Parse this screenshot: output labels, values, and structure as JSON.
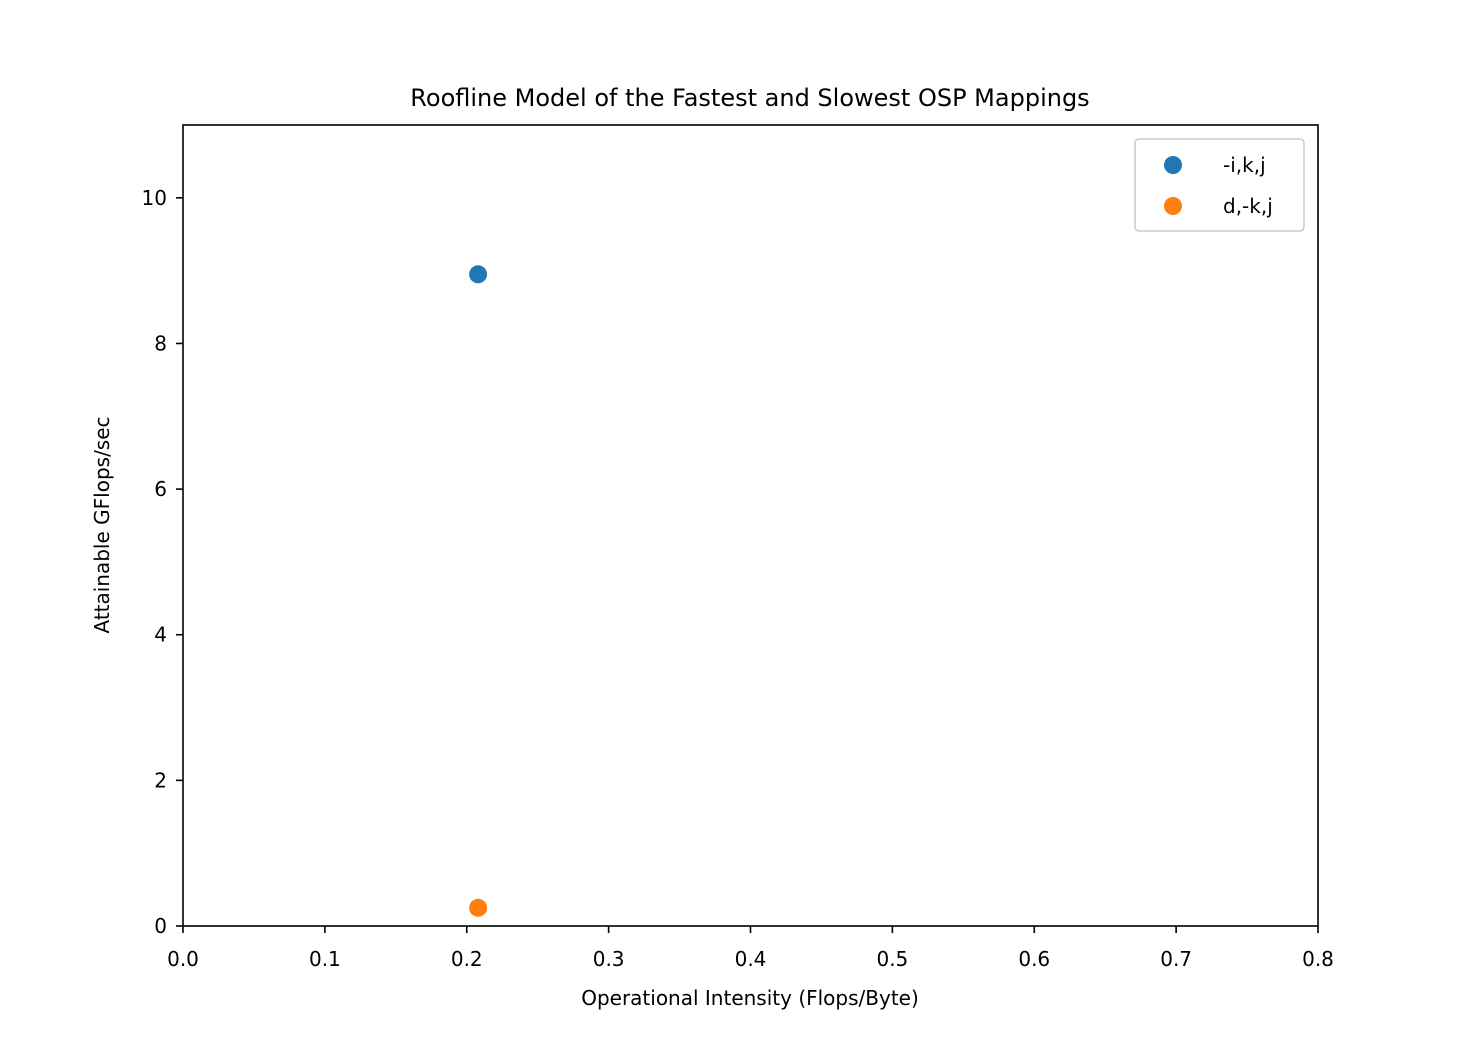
{
  "chart_data": {
    "type": "scatter",
    "title": "Roofline Model of the Fastest and Slowest OSP Mappings",
    "xlabel": "Operational Intensity (Flops/Byte)",
    "ylabel": "Attainable GFlops/sec",
    "xlim": [
      0.0,
      0.8
    ],
    "ylim": [
      0,
      11
    ],
    "xticks": [
      "0.0",
      "0.1",
      "0.2",
      "0.3",
      "0.4",
      "0.5",
      "0.6",
      "0.7",
      "0.8"
    ],
    "yticks": [
      "0",
      "2",
      "4",
      "6",
      "8",
      "10"
    ],
    "grid": false,
    "legend_position": "top-right",
    "series": [
      {
        "name": "-i,k,j",
        "color": "#1f77b4",
        "points": [
          {
            "x": 0.208,
            "y": 8.95
          }
        ]
      },
      {
        "name": "d,-k,j",
        "color": "#ff7f0e",
        "points": [
          {
            "x": 0.208,
            "y": 0.25
          }
        ]
      }
    ]
  }
}
